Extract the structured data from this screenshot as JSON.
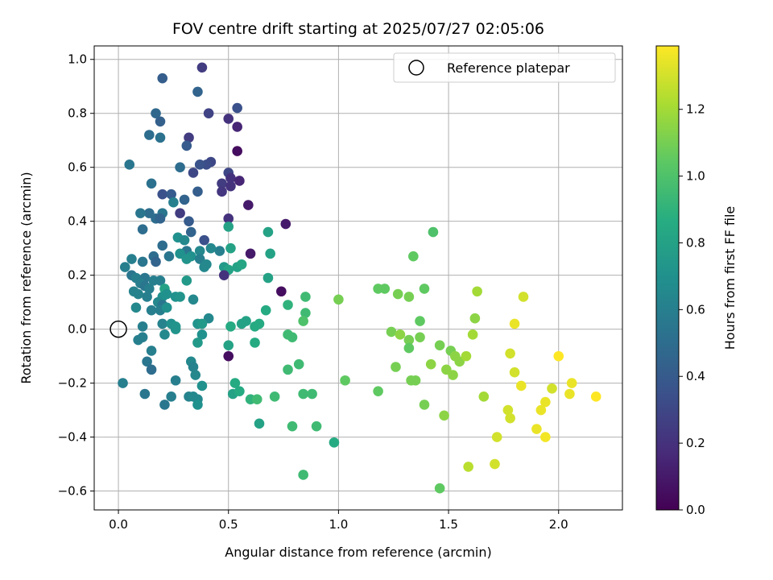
{
  "chart_data": {
    "type": "scatter",
    "title": "FOV centre drift starting at 2025/07/27 02:05:06",
    "xlabel": "Angular distance from reference (arcmin)",
    "ylabel": "Rotation from reference (arcmin)",
    "xlim": [
      -0.11,
      2.29
    ],
    "ylim": [
      -0.67,
      1.05
    ],
    "x_ticks": [
      0.0,
      0.5,
      1.0,
      1.5,
      2.0
    ],
    "x_tick_labels": [
      "0.0",
      "0.5",
      "1.0",
      "1.5",
      "2.0"
    ],
    "y_ticks": [
      -0.6,
      -0.4,
      -0.2,
      0.0,
      0.2,
      0.4,
      0.6,
      0.8,
      1.0
    ],
    "y_tick_labels": [
      "−0.6",
      "−0.4",
      "−0.2",
      "0.0",
      "0.2",
      "0.4",
      "0.6",
      "0.8",
      "1.0"
    ],
    "grid": true,
    "legend_position": "top-right",
    "legend": [
      {
        "label": "Reference platepar",
        "marker": "open-circle"
      }
    ],
    "reference_point": {
      "x": 0.0,
      "y": 0.0
    },
    "colorbar": {
      "label": "Hours from first FF file",
      "colormap": "viridis",
      "range": [
        0.0,
        1.39
      ],
      "ticks": [
        0.0,
        0.2,
        0.4,
        0.6,
        0.8,
        1.0,
        1.2
      ],
      "tick_labels": [
        "0.0",
        "0.2",
        "0.4",
        "0.6",
        "0.8",
        "1.0",
        "1.2"
      ]
    },
    "points": [
      {
        "x": 0.38,
        "y": 0.97,
        "c": 0.25
      },
      {
        "x": 0.2,
        "y": 0.93,
        "c": 0.42
      },
      {
        "x": 0.36,
        "y": 0.88,
        "c": 0.45
      },
      {
        "x": 0.54,
        "y": 0.82,
        "c": 0.35
      },
      {
        "x": 0.17,
        "y": 0.8,
        "c": 0.47
      },
      {
        "x": 0.41,
        "y": 0.8,
        "c": 0.28
      },
      {
        "x": 0.5,
        "y": 0.78,
        "c": 0.2
      },
      {
        "x": 0.19,
        "y": 0.77,
        "c": 0.43
      },
      {
        "x": 0.54,
        "y": 0.75,
        "c": 0.15
      },
      {
        "x": 0.14,
        "y": 0.72,
        "c": 0.5
      },
      {
        "x": 0.19,
        "y": 0.71,
        "c": 0.52
      },
      {
        "x": 0.32,
        "y": 0.71,
        "c": 0.25
      },
      {
        "x": 0.31,
        "y": 0.68,
        "c": 0.4
      },
      {
        "x": 0.54,
        "y": 0.66,
        "c": 0.05
      },
      {
        "x": 0.42,
        "y": 0.62,
        "c": 0.3
      },
      {
        "x": 0.4,
        "y": 0.61,
        "c": 0.33
      },
      {
        "x": 0.37,
        "y": 0.61,
        "c": 0.36
      },
      {
        "x": 0.05,
        "y": 0.61,
        "c": 0.55
      },
      {
        "x": 0.28,
        "y": 0.6,
        "c": 0.5
      },
      {
        "x": 0.34,
        "y": 0.58,
        "c": 0.3
      },
      {
        "x": 0.5,
        "y": 0.58,
        "c": 0.3
      },
      {
        "x": 0.51,
        "y": 0.56,
        "c": 0.2
      },
      {
        "x": 0.55,
        "y": 0.55,
        "c": 0.15
      },
      {
        "x": 0.47,
        "y": 0.54,
        "c": 0.25
      },
      {
        "x": 0.15,
        "y": 0.54,
        "c": 0.52
      },
      {
        "x": 0.51,
        "y": 0.53,
        "c": 0.2
      },
      {
        "x": 0.36,
        "y": 0.51,
        "c": 0.42
      },
      {
        "x": 0.47,
        "y": 0.51,
        "c": 0.22
      },
      {
        "x": 0.2,
        "y": 0.5,
        "c": 0.35
      },
      {
        "x": 0.24,
        "y": 0.5,
        "c": 0.4
      },
      {
        "x": 0.3,
        "y": 0.48,
        "c": 0.45
      },
      {
        "x": 0.25,
        "y": 0.47,
        "c": 0.6
      },
      {
        "x": 0.59,
        "y": 0.46,
        "c": 0.1
      },
      {
        "x": 0.2,
        "y": 0.43,
        "c": 0.55
      },
      {
        "x": 0.14,
        "y": 0.43,
        "c": 0.5
      },
      {
        "x": 0.1,
        "y": 0.43,
        "c": 0.55
      },
      {
        "x": 0.28,
        "y": 0.43,
        "c": 0.25
      },
      {
        "x": 0.17,
        "y": 0.41,
        "c": 0.5
      },
      {
        "x": 0.19,
        "y": 0.41,
        "c": 0.45
      },
      {
        "x": 0.5,
        "y": 0.41,
        "c": 0.2
      },
      {
        "x": 0.32,
        "y": 0.4,
        "c": 0.4
      },
      {
        "x": 0.76,
        "y": 0.39,
        "c": 0.1
      },
      {
        "x": 0.5,
        "y": 0.38,
        "c": 0.8
      },
      {
        "x": 0.11,
        "y": 0.37,
        "c": 0.5
      },
      {
        "x": 0.33,
        "y": 0.36,
        "c": 0.45
      },
      {
        "x": 0.68,
        "y": 0.36,
        "c": 0.8
      },
      {
        "x": 0.27,
        "y": 0.34,
        "c": 0.7
      },
      {
        "x": 0.3,
        "y": 0.33,
        "c": 0.65
      },
      {
        "x": 0.39,
        "y": 0.33,
        "c": 0.35
      },
      {
        "x": 0.2,
        "y": 0.31,
        "c": 0.5
      },
      {
        "x": 0.46,
        "y": 0.29,
        "c": 0.6
      },
      {
        "x": 0.42,
        "y": 0.3,
        "c": 0.65
      },
      {
        "x": 0.51,
        "y": 0.3,
        "c": 0.8
      },
      {
        "x": 0.31,
        "y": 0.29,
        "c": 0.55
      },
      {
        "x": 0.37,
        "y": 0.29,
        "c": 0.65
      },
      {
        "x": 0.28,
        "y": 0.28,
        "c": 0.7
      },
      {
        "x": 0.6,
        "y": 0.28,
        "c": 0.1
      },
      {
        "x": 0.69,
        "y": 0.28,
        "c": 0.8
      },
      {
        "x": 0.33,
        "y": 0.27,
        "c": 0.7
      },
      {
        "x": 0.23,
        "y": 0.27,
        "c": 0.55
      },
      {
        "x": 0.31,
        "y": 0.26,
        "c": 0.72
      },
      {
        "x": 0.06,
        "y": 0.26,
        "c": 0.6
      },
      {
        "x": 0.16,
        "y": 0.27,
        "c": 0.5
      },
      {
        "x": 0.37,
        "y": 0.26,
        "c": 0.6
      },
      {
        "x": 0.11,
        "y": 0.25,
        "c": 0.55
      },
      {
        "x": 0.17,
        "y": 0.25,
        "c": 0.45
      },
      {
        "x": 0.4,
        "y": 0.24,
        "c": 0.65
      },
      {
        "x": 0.39,
        "y": 0.23,
        "c": 0.65
      },
      {
        "x": 0.03,
        "y": 0.23,
        "c": 0.6
      },
      {
        "x": 0.48,
        "y": 0.23,
        "c": 0.75
      },
      {
        "x": 0.54,
        "y": 0.23,
        "c": 0.8
      },
      {
        "x": 0.56,
        "y": 0.24,
        "c": 0.82
      },
      {
        "x": 0.5,
        "y": 0.22,
        "c": 0.8
      },
      {
        "x": 0.48,
        "y": 0.2,
        "c": 0.2
      },
      {
        "x": 0.68,
        "y": 0.19,
        "c": 0.8
      },
      {
        "x": 0.06,
        "y": 0.2,
        "c": 0.55
      },
      {
        "x": 0.08,
        "y": 0.19,
        "c": 0.6
      },
      {
        "x": 0.12,
        "y": 0.19,
        "c": 0.55
      },
      {
        "x": 0.16,
        "y": 0.18,
        "c": 0.6
      },
      {
        "x": 0.19,
        "y": 0.18,
        "c": 0.6
      },
      {
        "x": 0.31,
        "y": 0.18,
        "c": 0.75
      },
      {
        "x": 0.1,
        "y": 0.17,
        "c": 0.6
      },
      {
        "x": 0.12,
        "y": 0.16,
        "c": 0.55
      },
      {
        "x": 0.14,
        "y": 0.15,
        "c": 0.6
      },
      {
        "x": 0.21,
        "y": 0.15,
        "c": 0.8
      },
      {
        "x": 0.74,
        "y": 0.14,
        "c": 0.05
      },
      {
        "x": 0.07,
        "y": 0.14,
        "c": 0.62
      },
      {
        "x": 0.09,
        "y": 0.13,
        "c": 0.62
      },
      {
        "x": 0.22,
        "y": 0.13,
        "c": 0.7
      },
      {
        "x": 0.26,
        "y": 0.12,
        "c": 0.7
      },
      {
        "x": 0.28,
        "y": 0.12,
        "c": 0.72
      },
      {
        "x": 0.13,
        "y": 0.12,
        "c": 0.6
      },
      {
        "x": 0.2,
        "y": 0.12,
        "c": 0.7
      },
      {
        "x": 0.85,
        "y": 0.12,
        "c": 0.95
      },
      {
        "x": 1.0,
        "y": 0.11,
        "c": 1.1
      },
      {
        "x": 0.34,
        "y": 0.11,
        "c": 0.65
      },
      {
        "x": 0.18,
        "y": 0.1,
        "c": 0.65
      },
      {
        "x": 0.2,
        "y": 0.09,
        "c": 0.55
      },
      {
        "x": 0.77,
        "y": 0.09,
        "c": 0.9
      },
      {
        "x": 0.08,
        "y": 0.08,
        "c": 0.65
      },
      {
        "x": 0.19,
        "y": 0.07,
        "c": 0.6
      },
      {
        "x": 0.15,
        "y": 0.07,
        "c": 0.6
      },
      {
        "x": 0.22,
        "y": 0.08,
        "c": 0.7
      },
      {
        "x": 0.67,
        "y": 0.07,
        "c": 0.85
      },
      {
        "x": 0.85,
        "y": 0.06,
        "c": 0.95
      },
      {
        "x": 0.41,
        "y": 0.04,
        "c": 0.65
      },
      {
        "x": 0.2,
        "y": 0.02,
        "c": 0.62
      },
      {
        "x": 0.24,
        "y": 0.02,
        "c": 0.7
      },
      {
        "x": 0.26,
        "y": 0.01,
        "c": 0.72
      },
      {
        "x": 0.11,
        "y": 0.01,
        "c": 0.6
      },
      {
        "x": 0.36,
        "y": 0.02,
        "c": 0.72
      },
      {
        "x": 0.38,
        "y": 0.02,
        "c": 0.75
      },
      {
        "x": 0.51,
        "y": 0.01,
        "c": 0.85
      },
      {
        "x": 0.56,
        "y": 0.02,
        "c": 0.8
      },
      {
        "x": 0.58,
        "y": 0.03,
        "c": 0.8
      },
      {
        "x": 0.62,
        "y": 0.01,
        "c": 0.85
      },
      {
        "x": 0.64,
        "y": 0.02,
        "c": 0.85
      },
      {
        "x": 0.84,
        "y": 0.03,
        "c": 1.0
      },
      {
        "x": 0.26,
        "y": 0.0,
        "c": 0.72
      },
      {
        "x": 0.21,
        "y": -0.02,
        "c": 0.65
      },
      {
        "x": 0.38,
        "y": -0.02,
        "c": 0.7
      },
      {
        "x": 0.11,
        "y": -0.03,
        "c": 0.6
      },
      {
        "x": 0.09,
        "y": -0.04,
        "c": 0.6
      },
      {
        "x": 0.77,
        "y": -0.02,
        "c": 0.95
      },
      {
        "x": 0.79,
        "y": -0.03,
        "c": 0.95
      },
      {
        "x": 0.62,
        "y": -0.05,
        "c": 0.85
      },
      {
        "x": 0.36,
        "y": -0.05,
        "c": 0.75
      },
      {
        "x": 0.5,
        "y": -0.06,
        "c": 0.8
      },
      {
        "x": 0.15,
        "y": -0.08,
        "c": 0.6
      },
      {
        "x": 0.5,
        "y": -0.1,
        "c": 0.05
      },
      {
        "x": 0.13,
        "y": -0.12,
        "c": 0.55
      },
      {
        "x": 0.33,
        "y": -0.12,
        "c": 0.65
      },
      {
        "x": 0.82,
        "y": -0.13,
        "c": 0.95
      },
      {
        "x": 0.34,
        "y": -0.14,
        "c": 0.62
      },
      {
        "x": 0.15,
        "y": -0.15,
        "c": 0.5
      },
      {
        "x": 0.77,
        "y": -0.15,
        "c": 0.95
      },
      {
        "x": 0.35,
        "y": -0.17,
        "c": 0.65
      },
      {
        "x": 0.26,
        "y": -0.19,
        "c": 0.6
      },
      {
        "x": 0.02,
        "y": -0.2,
        "c": 0.6
      },
      {
        "x": 0.53,
        "y": -0.2,
        "c": 0.85
      },
      {
        "x": 0.38,
        "y": -0.21,
        "c": 0.7
      },
      {
        "x": 0.84,
        "y": -0.24,
        "c": 0.95
      },
      {
        "x": 0.12,
        "y": -0.24,
        "c": 0.55
      },
      {
        "x": 0.52,
        "y": -0.24,
        "c": 0.8
      },
      {
        "x": 0.55,
        "y": -0.23,
        "c": 0.85
      },
      {
        "x": 0.88,
        "y": -0.24,
        "c": 0.95
      },
      {
        "x": 0.24,
        "y": -0.25,
        "c": 0.6
      },
      {
        "x": 0.32,
        "y": -0.25,
        "c": 0.62
      },
      {
        "x": 0.34,
        "y": -0.25,
        "c": 0.65
      },
      {
        "x": 0.71,
        "y": -0.25,
        "c": 0.95
      },
      {
        "x": 0.6,
        "y": -0.26,
        "c": 0.9
      },
      {
        "x": 0.63,
        "y": -0.26,
        "c": 0.95
      },
      {
        "x": 0.36,
        "y": -0.26,
        "c": 0.65
      },
      {
        "x": 0.21,
        "y": -0.28,
        "c": 0.55
      },
      {
        "x": 0.36,
        "y": -0.28,
        "c": 0.7
      },
      {
        "x": 0.64,
        "y": -0.35,
        "c": 0.8
      },
      {
        "x": 0.79,
        "y": -0.36,
        "c": 0.95
      },
      {
        "x": 0.9,
        "y": -0.36,
        "c": 0.95
      },
      {
        "x": 0.98,
        "y": -0.42,
        "c": 0.85
      },
      {
        "x": 0.84,
        "y": -0.54,
        "c": 0.95
      },
      {
        "x": 1.43,
        "y": 0.36,
        "c": 1.0
      },
      {
        "x": 1.34,
        "y": 0.27,
        "c": 1.05
      },
      {
        "x": 1.18,
        "y": 0.15,
        "c": 1.05
      },
      {
        "x": 1.21,
        "y": 0.15,
        "c": 1.05
      },
      {
        "x": 1.39,
        "y": 0.15,
        "c": 1.05
      },
      {
        "x": 1.27,
        "y": 0.13,
        "c": 1.1
      },
      {
        "x": 1.32,
        "y": 0.12,
        "c": 1.1
      },
      {
        "x": 1.63,
        "y": 0.14,
        "c": 1.2
      },
      {
        "x": 1.84,
        "y": 0.12,
        "c": 1.3
      },
      {
        "x": 1.37,
        "y": 0.03,
        "c": 1.05
      },
      {
        "x": 1.62,
        "y": 0.04,
        "c": 1.15
      },
      {
        "x": 1.8,
        "y": 0.02,
        "c": 1.35
      },
      {
        "x": 1.24,
        "y": -0.01,
        "c": 1.1
      },
      {
        "x": 1.28,
        "y": -0.02,
        "c": 1.15
      },
      {
        "x": 1.32,
        "y": -0.04,
        "c": 1.1
      },
      {
        "x": 1.37,
        "y": -0.03,
        "c": 1.1
      },
      {
        "x": 1.61,
        "y": -0.02,
        "c": 1.2
      },
      {
        "x": 1.46,
        "y": -0.06,
        "c": 1.1
      },
      {
        "x": 1.32,
        "y": -0.07,
        "c": 1.05
      },
      {
        "x": 1.51,
        "y": -0.08,
        "c": 1.1
      },
      {
        "x": 1.53,
        "y": -0.1,
        "c": 1.15
      },
      {
        "x": 1.55,
        "y": -0.12,
        "c": 1.15
      },
      {
        "x": 1.58,
        "y": -0.1,
        "c": 1.2
      },
      {
        "x": 1.78,
        "y": -0.09,
        "c": 1.3
      },
      {
        "x": 2.0,
        "y": -0.1,
        "c": 1.39
      },
      {
        "x": 1.42,
        "y": -0.13,
        "c": 1.15
      },
      {
        "x": 1.26,
        "y": -0.14,
        "c": 1.1
      },
      {
        "x": 1.49,
        "y": -0.15,
        "c": 1.15
      },
      {
        "x": 1.52,
        "y": -0.17,
        "c": 1.15
      },
      {
        "x": 1.8,
        "y": -0.16,
        "c": 1.3
      },
      {
        "x": 1.03,
        "y": -0.19,
        "c": 1.05
      },
      {
        "x": 1.33,
        "y": -0.19,
        "c": 1.1
      },
      {
        "x": 1.35,
        "y": -0.19,
        "c": 1.1
      },
      {
        "x": 1.83,
        "y": -0.21,
        "c": 1.35
      },
      {
        "x": 2.06,
        "y": -0.2,
        "c": 1.35
      },
      {
        "x": 1.18,
        "y": -0.23,
        "c": 1.05
      },
      {
        "x": 1.97,
        "y": -0.22,
        "c": 1.3
      },
      {
        "x": 2.05,
        "y": -0.24,
        "c": 1.35
      },
      {
        "x": 1.66,
        "y": -0.25,
        "c": 1.2
      },
      {
        "x": 2.17,
        "y": -0.25,
        "c": 1.39
      },
      {
        "x": 1.94,
        "y": -0.27,
        "c": 1.35
      },
      {
        "x": 1.39,
        "y": -0.28,
        "c": 1.1
      },
      {
        "x": 1.77,
        "y": -0.3,
        "c": 1.3
      },
      {
        "x": 1.92,
        "y": -0.3,
        "c": 1.35
      },
      {
        "x": 1.48,
        "y": -0.32,
        "c": 1.15
      },
      {
        "x": 1.78,
        "y": -0.33,
        "c": 1.3
      },
      {
        "x": 1.9,
        "y": -0.37,
        "c": 1.35
      },
      {
        "x": 1.94,
        "y": -0.4,
        "c": 1.37
      },
      {
        "x": 1.72,
        "y": -0.4,
        "c": 1.3
      },
      {
        "x": 1.71,
        "y": -0.5,
        "c": 1.3
      },
      {
        "x": 1.59,
        "y": -0.51,
        "c": 1.25
      },
      {
        "x": 1.46,
        "y": -0.59,
        "c": 1.05
      }
    ]
  }
}
